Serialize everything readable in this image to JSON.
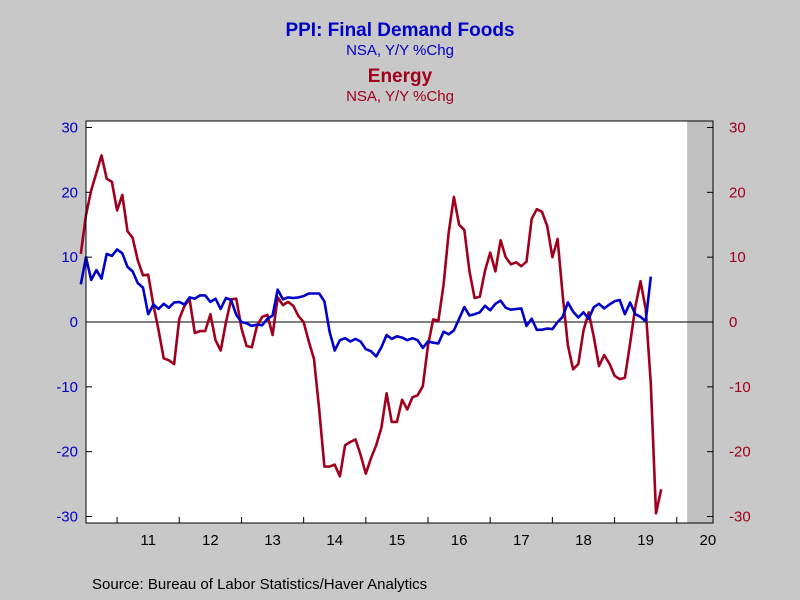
{
  "chart_data": {
    "type": "line",
    "titles": [
      {
        "title": "PPI: Final Demand Foods",
        "subtitle": "NSA, Y/Y %Chg",
        "color": "#0000c8"
      },
      {
        "title": "Energy",
        "subtitle": "NSA, Y/Y %Chg",
        "color": "#a0001e"
      }
    ],
    "source": "Source:  Bureau of Labor Statistics/Haver Analytics",
    "x_tick_labels": [
      "11",
      "12",
      "13",
      "14",
      "15",
      "16",
      "17",
      "18",
      "19",
      "20"
    ],
    "x_range": [
      2010.5,
      2020.583
    ],
    "ylim": [
      -31,
      31
    ],
    "y_ticks_left": [
      30,
      20,
      10,
      0,
      -10,
      -20,
      -30
    ],
    "y_ticks_right": [
      30,
      20,
      10,
      0,
      -10,
      -20,
      -30
    ],
    "recession_shading": {
      "start": 2020.167,
      "end": 2020.583
    },
    "colors": {
      "foods": "#0000c8",
      "energy": "#a0001e",
      "left_axis": "#0000c8",
      "right_axis": "#a0001e",
      "plot_background": "#ffffff",
      "page_background": "#c8c8c8",
      "shade": "#c0c0c0"
    },
    "x_start": "2010-06",
    "series": [
      {
        "name": "PPI: Final Demand Foods",
        "values": [
          5.8,
          10.0,
          6.5,
          8.0,
          6.7,
          10.5,
          10.2,
          11.2,
          10.6,
          8.5,
          7.8,
          6.0,
          5.3,
          1.2,
          2.7,
          2.0,
          2.8,
          2.2,
          3.0,
          3.1,
          2.7,
          3.8,
          3.6,
          4.1,
          4.1,
          3.1,
          3.6,
          2.0,
          3.7,
          3.4,
          1.1,
          0.0,
          -0.2,
          -0.6,
          -0.4,
          -0.5,
          0.5,
          1.0,
          5.0,
          3.5,
          3.8,
          3.7,
          3.8,
          4.0,
          4.4,
          4.4,
          4.4,
          3.2,
          -1.5,
          -4.4,
          -2.8,
          -2.5,
          -3.0,
          -2.6,
          -3.0,
          -4.2,
          -4.5,
          -5.3,
          -3.9,
          -2.0,
          -2.6,
          -2.2,
          -2.4,
          -2.8,
          -2.5,
          -2.8,
          -4.0,
          -3.0,
          -3.2,
          -3.3,
          -1.5,
          -1.9,
          -1.3,
          0.5,
          2.3,
          1.0,
          1.2,
          1.5,
          2.5,
          1.8,
          2.8,
          3.3,
          2.2,
          1.9,
          2.0,
          2.1,
          -0.6,
          0.5,
          -1.2,
          -1.2,
          -1.0,
          -1.1,
          0.0,
          0.8,
          3.0,
          1.6,
          0.7,
          1.5,
          0.5,
          2.3,
          2.8,
          2.1,
          2.7,
          3.2,
          3.4,
          1.2,
          3.0,
          1.2,
          0.8,
          0.1,
          7.0
        ]
      },
      {
        "name": "Energy",
        "values": [
          10.5,
          16.5,
          20.3,
          23.0,
          25.7,
          22.1,
          21.6,
          17.2,
          19.6,
          14.0,
          13.0,
          9.5,
          7.2,
          7.3,
          2.6,
          -1.2,
          -5.6,
          -5.9,
          -6.5,
          0.5,
          2.5,
          3.5,
          -1.7,
          -1.4,
          -1.4,
          1.2,
          -2.8,
          -4.4,
          -0.1,
          3.5,
          3.6,
          -1.0,
          -3.7,
          -3.9,
          -0.6,
          0.8,
          1.1,
          -2.0,
          3.8,
          2.6,
          3.1,
          2.5,
          0.9,
          0.0,
          -3.0,
          -5.7,
          -13.5,
          -22.3,
          -22.3,
          -22.0,
          -23.8,
          -19.0,
          -18.5,
          -18.1,
          -20.5,
          -23.4,
          -21.0,
          -19.0,
          -16.3,
          -11.0,
          -15.4,
          -15.4,
          -12.0,
          -13.5,
          -11.6,
          -11.3,
          -9.9,
          -3.6,
          0.4,
          0.2,
          5.8,
          13.8,
          19.3,
          15.0,
          14.2,
          7.8,
          3.7,
          3.9,
          7.9,
          10.7,
          7.8,
          12.6,
          10.0,
          8.9,
          9.2,
          8.6,
          9.3,
          15.9,
          17.4,
          17.0,
          14.8,
          10.0,
          12.8,
          4.1,
          -3.6,
          -7.3,
          -6.5,
          -1.3,
          1.5,
          -2.3,
          -6.8,
          -5.1,
          -6.4,
          -8.3,
          -8.8,
          -8.6,
          -3.3,
          2.3,
          6.3,
          2.0,
          -9.5,
          -29.5,
          -25.8
        ]
      }
    ]
  }
}
